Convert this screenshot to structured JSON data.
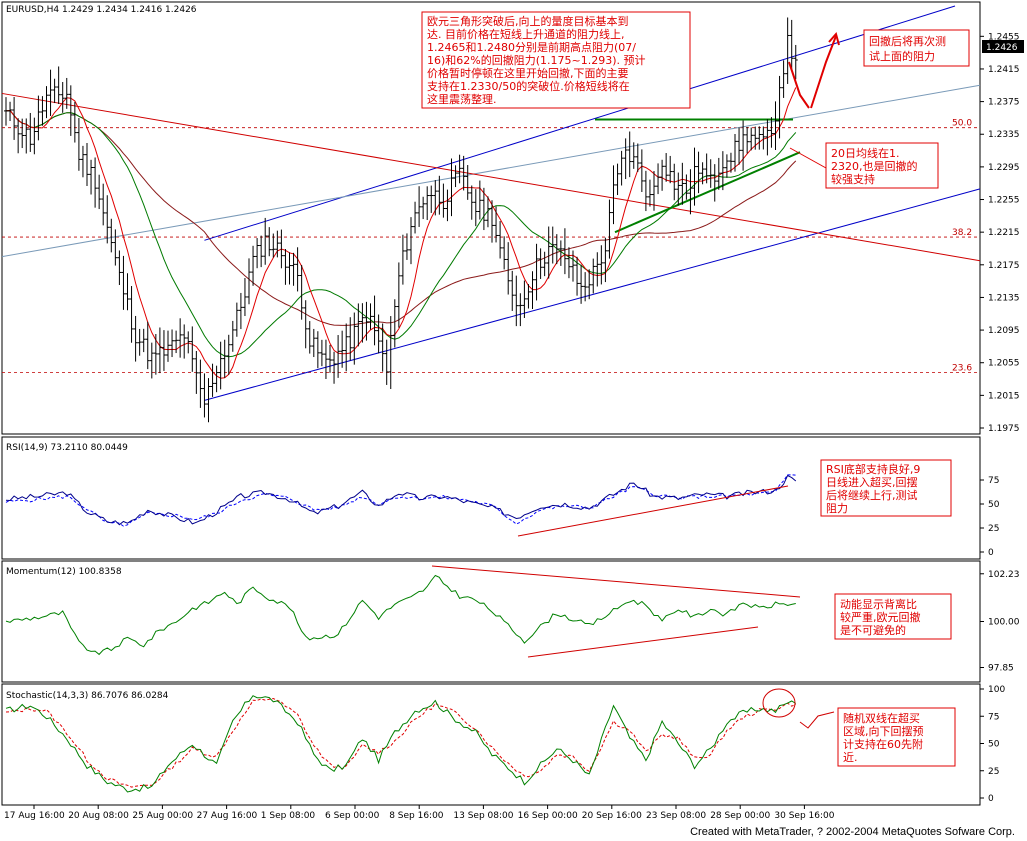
{
  "footer": "Created with MetaTrader, ? 2002-2004 MetaQuotes Sofware Corp.",
  "colors": {
    "price_bar": "#000000",
    "ma_fast": "#e00000",
    "ma_mid": "#007a00",
    "ma_slow": "#8b1a1a",
    "channel": "#0000c8",
    "midline": "#7a9ab8",
    "downtrend": "#d00000",
    "fib": "#c00000",
    "support": "#008000",
    "note_border": "#e00000",
    "note_text": "#e00000",
    "osc_main": "#00008b",
    "osc_signal": "#0000ff",
    "momentum": "#008000",
    "stoch_signal": "#e00000",
    "price_box": "#000000"
  },
  "chart_data": [
    {
      "type": "candlestick-ohlc",
      "title": "EURUSD,H4  1.2429 1.2434 1.2416 1.2426",
      "current_price": "1.2426",
      "ylim": [
        1.1975,
        1.2475
      ],
      "y_ticks": [
        "1.2455",
        "1.2415",
        "1.2375",
        "1.2335",
        "1.2295",
        "1.2255",
        "1.2215",
        "1.2175",
        "1.2135",
        "1.2095",
        "1.2055",
        "1.2015",
        "1.1975"
      ],
      "fib_levels": [
        {
          "label": "50.0",
          "value": 1.2343
        },
        {
          "label": "38.2",
          "value": 1.2209
        },
        {
          "label": "23.6",
          "value": 1.2043
        }
      ],
      "x_tick_labels": [
        "17 Aug 16:00",
        "20 Aug 08:00",
        "25 Aug 00:00",
        "27 Aug 16:00",
        "1 Sep 08:00",
        "6 Sep 00:00",
        "8 Sep 16:00",
        "13 Sep 08:00",
        "16 Sep 00:00",
        "20 Sep 16:00",
        "23 Sep 08:00",
        "28 Sep 00:00",
        "30 Sep 16:00"
      ],
      "close_waypoints": [
        [
          0,
          1.236
        ],
        [
          6,
          1.233
        ],
        [
          10,
          1.238
        ],
        [
          15,
          1.2385
        ],
        [
          18,
          1.231
        ],
        [
          22,
          1.228
        ],
        [
          25,
          1.222
        ],
        [
          28,
          1.216
        ],
        [
          32,
          1.209
        ],
        [
          36,
          1.206
        ],
        [
          40,
          1.207
        ],
        [
          44,
          1.209
        ],
        [
          47,
          1.2035
        ],
        [
          49,
          1.2005
        ],
        [
          52,
          1.205
        ],
        [
          55,
          1.208
        ],
        [
          58,
          1.2125
        ],
        [
          61,
          1.218
        ],
        [
          64,
          1.2205
        ],
        [
          68,
          1.219
        ],
        [
          72,
          1.216
        ],
        [
          75,
          1.208
        ],
        [
          79,
          1.2055
        ],
        [
          84,
          1.2075
        ],
        [
          89,
          1.2115
        ],
        [
          92,
          1.208
        ],
        [
          94,
          1.2045
        ],
        [
          97,
          1.216
        ],
        [
          100,
          1.2225
        ],
        [
          104,
          1.2265
        ],
        [
          108,
          1.2255
        ],
        [
          112,
          1.2285
        ],
        [
          116,
          1.2245
        ],
        [
          120,
          1.2235
        ],
        [
          124,
          1.215
        ],
        [
          127,
          1.2125
        ],
        [
          130,
          1.2165
        ],
        [
          134,
          1.2195
        ],
        [
          138,
          1.2185
        ],
        [
          142,
          1.2145
        ],
        [
          145,
          1.2165
        ],
        [
          148,
          1.2195
        ],
        [
          150,
          1.2265
        ],
        [
          153,
          1.2315
        ],
        [
          156,
          1.2295
        ],
        [
          159,
          1.2255
        ],
        [
          162,
          1.2305
        ],
        [
          165,
          1.2275
        ],
        [
          168,
          1.2265
        ],
        [
          171,
          1.2295
        ],
        [
          174,
          1.2275
        ],
        [
          177,
          1.2305
        ],
        [
          180,
          1.2315
        ],
        [
          183,
          1.2335
        ],
        [
          186,
          1.2325
        ],
        [
          189,
          1.233
        ],
        [
          191,
          1.2395
        ],
        [
          193,
          1.2445
        ],
        [
          195,
          1.2426
        ]
      ],
      "annotations": [
        {
          "id": "main",
          "text": [
            "欧元三角形突破后,向上的量度目标基本到",
            "达. 目前价格在短线上升通道的阻力线上,",
            "1.2465和1.2480分别是前期高点阻力(07/",
            "16)和62%的回撤阻力(1.175~1.293). 预计",
            "价格暂时停顿在这里开始回撤,下面的主要",
            "支持在1.2330/50的突破位.价格短线将在",
            "这里震荡整理."
          ]
        },
        {
          "id": "resist",
          "text": [
            "回撤后将再次测",
            "试上面的阻力"
          ]
        },
        {
          "id": "ma20",
          "text": [
            "20日均线在1.",
            "2320,也是回撤的",
            "较强支持"
          ]
        }
      ]
    },
    {
      "type": "line",
      "title": "RSI(14,9)  73.2110  80.0449",
      "ylim": [
        0,
        100
      ],
      "y_ticks": [
        "75",
        "50",
        "25",
        "0"
      ],
      "main_waypoints": [
        [
          0,
          55
        ],
        [
          8,
          58
        ],
        [
          15,
          62
        ],
        [
          20,
          42
        ],
        [
          25,
          32
        ],
        [
          30,
          30
        ],
        [
          35,
          44
        ],
        [
          42,
          36
        ],
        [
          47,
          30
        ],
        [
          52,
          42
        ],
        [
          58,
          58
        ],
        [
          64,
          62
        ],
        [
          70,
          55
        ],
        [
          76,
          40
        ],
        [
          82,
          48
        ],
        [
          88,
          62
        ],
        [
          92,
          48
        ],
        [
          97,
          62
        ],
        [
          102,
          56
        ],
        [
          108,
          58
        ],
        [
          114,
          52
        ],
        [
          120,
          46
        ],
        [
          126,
          36
        ],
        [
          132,
          48
        ],
        [
          138,
          50
        ],
        [
          144,
          46
        ],
        [
          150,
          60
        ],
        [
          155,
          72
        ],
        [
          160,
          58
        ],
        [
          166,
          56
        ],
        [
          172,
          60
        ],
        [
          178,
          58
        ],
        [
          184,
          62
        ],
        [
          190,
          64
        ],
        [
          193,
          78
        ],
        [
          195,
          74
        ]
      ],
      "signal_waypoints": [
        [
          0,
          52
        ],
        [
          8,
          55
        ],
        [
          15,
          58
        ],
        [
          20,
          45
        ],
        [
          25,
          30
        ],
        [
          30,
          28
        ],
        [
          35,
          40
        ],
        [
          42,
          38
        ],
        [
          47,
          34
        ],
        [
          52,
          40
        ],
        [
          58,
          54
        ],
        [
          64,
          60
        ],
        [
          70,
          56
        ],
        [
          76,
          44
        ],
        [
          82,
          46
        ],
        [
          88,
          58
        ],
        [
          92,
          50
        ],
        [
          97,
          58
        ],
        [
          102,
          56
        ],
        [
          108,
          57
        ],
        [
          114,
          54
        ],
        [
          120,
          48
        ],
        [
          126,
          30
        ],
        [
          132,
          44
        ],
        [
          138,
          48
        ],
        [
          144,
          46
        ],
        [
          150,
          58
        ],
        [
          155,
          68
        ],
        [
          160,
          60
        ],
        [
          166,
          56
        ],
        [
          172,
          58
        ],
        [
          178,
          58
        ],
        [
          184,
          60
        ],
        [
          190,
          62
        ],
        [
          193,
          80
        ],
        [
          195,
          80
        ]
      ],
      "annotation": [
        "RSI底部支持良好,9",
        "日线进入超买,回摆",
        "后将继续上行,测试",
        "阻力"
      ]
    },
    {
      "type": "line",
      "title": "Momentum(12)  100.8358",
      "ylim": [
        97.5,
        102.5
      ],
      "y_ticks": [
        "102.23",
        "100.00",
        "97.85"
      ],
      "waypoints": [
        [
          0,
          100.0
        ],
        [
          8,
          100.2
        ],
        [
          14,
          100.4
        ],
        [
          18,
          99.0
        ],
        [
          22,
          98.5
        ],
        [
          26,
          98.7
        ],
        [
          30,
          99.2
        ],
        [
          34,
          98.9
        ],
        [
          38,
          99.6
        ],
        [
          42,
          100.0
        ],
        [
          46,
          100.6
        ],
        [
          50,
          100.9
        ],
        [
          54,
          101.4
        ],
        [
          57,
          100.8
        ],
        [
          61,
          101.6
        ],
        [
          65,
          101.1
        ],
        [
          70,
          100.7
        ],
        [
          74,
          99.2
        ],
        [
          78,
          99.3
        ],
        [
          82,
          99.4
        ],
        [
          88,
          101.0
        ],
        [
          92,
          100.2
        ],
        [
          96,
          100.8
        ],
        [
          100,
          101.1
        ],
        [
          104,
          101.6
        ],
        [
          106,
          102.1
        ],
        [
          108,
          101.8
        ],
        [
          112,
          101.2
        ],
        [
          116,
          101.0
        ],
        [
          120,
          100.5
        ],
        [
          124,
          99.8
        ],
        [
          128,
          99.1
        ],
        [
          131,
          99.6
        ],
        [
          136,
          100.4
        ],
        [
          140,
          100.1
        ],
        [
          144,
          99.8
        ],
        [
          150,
          100.5
        ],
        [
          154,
          101.0
        ],
        [
          158,
          100.8
        ],
        [
          162,
          100.0
        ],
        [
          166,
          100.6
        ],
        [
          170,
          100.2
        ],
        [
          174,
          100.6
        ],
        [
          178,
          100.3
        ],
        [
          182,
          100.9
        ],
        [
          186,
          100.6
        ],
        [
          190,
          100.8
        ],
        [
          194,
          100.84
        ]
      ],
      "annotation": [
        "动能显示背离比",
        "较严重,欧元回撤",
        "是不可避免的"
      ]
    },
    {
      "type": "line",
      "title": "Stochastic(14,3,3)  86.7076  86.0284",
      "ylim": [
        0,
        100
      ],
      "y_ticks": [
        "100",
        "75",
        "50",
        "25",
        "0"
      ],
      "main_waypoints": [
        [
          0,
          80
        ],
        [
          6,
          85
        ],
        [
          10,
          75
        ],
        [
          15,
          55
        ],
        [
          20,
          30
        ],
        [
          25,
          15
        ],
        [
          30,
          8
        ],
        [
          36,
          10
        ],
        [
          40,
          30
        ],
        [
          46,
          50
        ],
        [
          52,
          30
        ],
        [
          56,
          70
        ],
        [
          61,
          95
        ],
        [
          66,
          90
        ],
        [
          72,
          70
        ],
        [
          76,
          40
        ],
        [
          80,
          25
        ],
        [
          84,
          30
        ],
        [
          88,
          55
        ],
        [
          92,
          35
        ],
        [
          96,
          60
        ],
        [
          101,
          80
        ],
        [
          106,
          88
        ],
        [
          110,
          75
        ],
        [
          116,
          60
        ],
        [
          120,
          40
        ],
        [
          124,
          28
        ],
        [
          128,
          15
        ],
        [
          132,
          30
        ],
        [
          136,
          45
        ],
        [
          140,
          35
        ],
        [
          144,
          20
        ],
        [
          150,
          85
        ],
        [
          154,
          55
        ],
        [
          158,
          35
        ],
        [
          162,
          70
        ],
        [
          166,
          50
        ],
        [
          170,
          30
        ],
        [
          174,
          45
        ],
        [
          178,
          70
        ],
        [
          182,
          78
        ],
        [
          186,
          82
        ],
        [
          190,
          80
        ],
        [
          193,
          88
        ],
        [
          195,
          86.7
        ]
      ],
      "signal_waypoints": [
        [
          0,
          78
        ],
        [
          6,
          82
        ],
        [
          10,
          80
        ],
        [
          15,
          60
        ],
        [
          20,
          35
        ],
        [
          25,
          18
        ],
        [
          30,
          10
        ],
        [
          36,
          12
        ],
        [
          40,
          25
        ],
        [
          46,
          45
        ],
        [
          52,
          38
        ],
        [
          56,
          62
        ],
        [
          61,
          88
        ],
        [
          66,
          92
        ],
        [
          72,
          76
        ],
        [
          76,
          48
        ],
        [
          80,
          30
        ],
        [
          84,
          28
        ],
        [
          88,
          48
        ],
        [
          92,
          42
        ],
        [
          96,
          52
        ],
        [
          101,
          72
        ],
        [
          106,
          86
        ],
        [
          110,
          80
        ],
        [
          116,
          64
        ],
        [
          120,
          46
        ],
        [
          124,
          32
        ],
        [
          128,
          20
        ],
        [
          132,
          25
        ],
        [
          136,
          40
        ],
        [
          140,
          38
        ],
        [
          144,
          25
        ],
        [
          150,
          70
        ],
        [
          154,
          62
        ],
        [
          158,
          42
        ],
        [
          162,
          58
        ],
        [
          166,
          55
        ],
        [
          170,
          36
        ],
        [
          174,
          40
        ],
        [
          178,
          62
        ],
        [
          182,
          74
        ],
        [
          186,
          80
        ],
        [
          190,
          82
        ],
        [
          193,
          86
        ],
        [
          195,
          86
        ]
      ],
      "annotation": [
        "随机双线在超买",
        "区域,向下回摆预",
        "计支持在60先附",
        "近."
      ]
    }
  ]
}
